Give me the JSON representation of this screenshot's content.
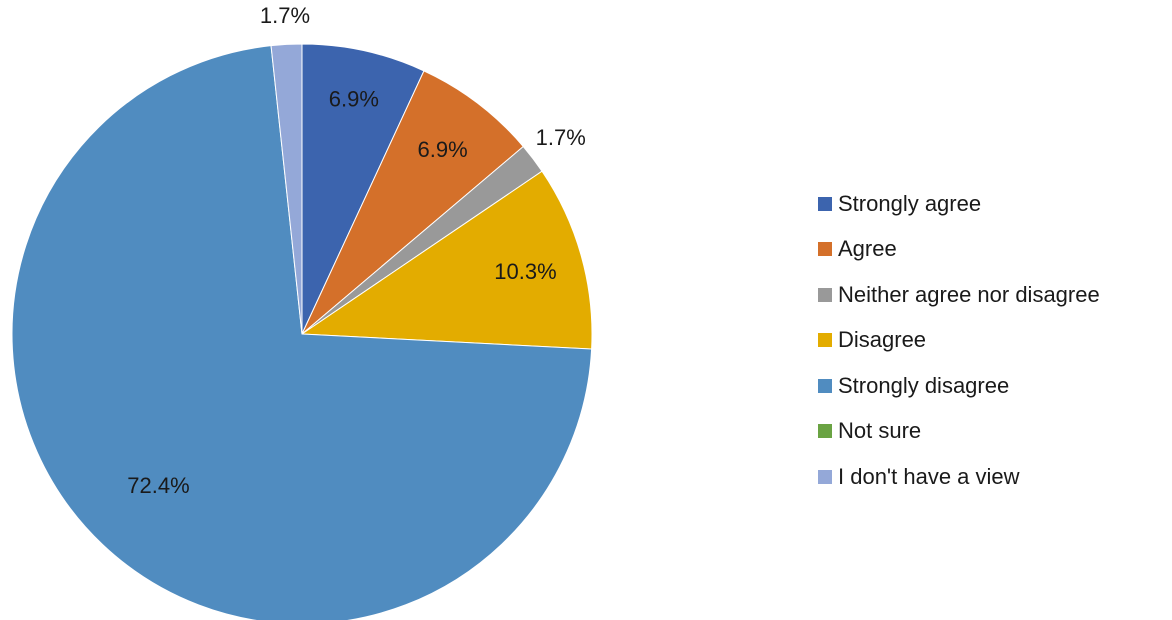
{
  "chart_data": {
    "type": "pie",
    "start_angle_deg": 0,
    "direction": "clockwise",
    "legend_position": "right",
    "slices": [
      {
        "name": "Strongly agree",
        "value": 6.9,
        "label": "6.9%",
        "color": "#3c64ae"
      },
      {
        "name": "Agree",
        "value": 6.9,
        "label": "6.9%",
        "color": "#d4702a"
      },
      {
        "name": "Neither agree nor disagree",
        "value": 1.7,
        "label": "1.7%",
        "color": "#999999"
      },
      {
        "name": "Disagree",
        "value": 10.3,
        "label": "10.3%",
        "color": "#e3ac00"
      },
      {
        "name": "Strongly disagree",
        "value": 72.4,
        "label": "72.4%",
        "color": "#508cc0"
      },
      {
        "name": "Not sure",
        "value": 0,
        "label": "",
        "color": "#6aa343"
      },
      {
        "name": "I don't have a view",
        "value": 1.7,
        "label": "1.7%",
        "color": "#94a8d8"
      }
    ]
  }
}
